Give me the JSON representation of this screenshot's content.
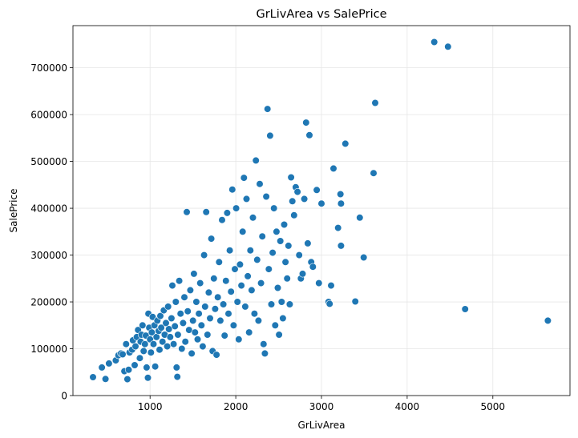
{
  "chart_data": {
    "type": "scatter",
    "title": "GrLivArea vs SalePrice",
    "xlabel": "GrLivArea",
    "ylabel": "SalePrice",
    "xlim": [
      100,
      5900
    ],
    "ylim": [
      0,
      790000
    ],
    "xticks": [
      1000,
      2000,
      3000,
      4000,
      5000
    ],
    "yticks": [
      0,
      100000,
      200000,
      300000,
      400000,
      500000,
      600000,
      700000
    ],
    "grid": true,
    "legend": "none",
    "colors": {
      "point": "#1f77b4",
      "point_edge": "#ffffff",
      "grid": "#e6e6e6",
      "axis": "#000000"
    },
    "points": [
      [
        334,
        39300
      ],
      [
        438,
        60000
      ],
      [
        480,
        35311
      ],
      [
        520,
        68500
      ],
      [
        600,
        75000
      ],
      [
        630,
        86000
      ],
      [
        660,
        90000
      ],
      [
        680,
        88000
      ],
      [
        700,
        52000
      ],
      [
        720,
        110000
      ],
      [
        735,
        34900
      ],
      [
        750,
        55000
      ],
      [
        760,
        92000
      ],
      [
        790,
        98000
      ],
      [
        800,
        118000
      ],
      [
        820,
        65000
      ],
      [
        830,
        105000
      ],
      [
        845,
        125000
      ],
      [
        860,
        140000
      ],
      [
        880,
        80000
      ],
      [
        890,
        115000
      ],
      [
        900,
        130000
      ],
      [
        912,
        150000
      ],
      [
        925,
        95000
      ],
      [
        940,
        110000
      ],
      [
        950,
        128000
      ],
      [
        960,
        60000
      ],
      [
        975,
        37900
      ],
      [
        980,
        175000
      ],
      [
        990,
        145000
      ],
      [
        1000,
        120000
      ],
      [
        1010,
        92000
      ],
      [
        1020,
        135000
      ],
      [
        1030,
        168000
      ],
      [
        1040,
        110000
      ],
      [
        1050,
        150000
      ],
      [
        1060,
        62000
      ],
      [
        1075,
        125000
      ],
      [
        1085,
        160000
      ],
      [
        1100,
        138000
      ],
      [
        1110,
        98000
      ],
      [
        1120,
        170000
      ],
      [
        1130,
        145000
      ],
      [
        1145,
        115000
      ],
      [
        1160,
        182000
      ],
      [
        1170,
        130000
      ],
      [
        1185,
        155000
      ],
      [
        1200,
        105000
      ],
      [
        1210,
        190000
      ],
      [
        1220,
        142000
      ],
      [
        1235,
        125000
      ],
      [
        1250,
        165000
      ],
      [
        1260,
        235000
      ],
      [
        1275,
        110000
      ],
      [
        1290,
        148000
      ],
      [
        1300,
        200000
      ],
      [
        1310,
        60000
      ],
      [
        1318,
        40000
      ],
      [
        1325,
        130000
      ],
      [
        1340,
        245000
      ],
      [
        1355,
        175000
      ],
      [
        1370,
        100000
      ],
      [
        1385,
        155000
      ],
      [
        1400,
        210000
      ],
      [
        1412,
        115000
      ],
      [
        1428,
        392000
      ],
      [
        1440,
        180000
      ],
      [
        1455,
        140000
      ],
      [
        1470,
        225000
      ],
      [
        1485,
        90000
      ],
      [
        1500,
        160000
      ],
      [
        1512,
        260000
      ],
      [
        1525,
        135000
      ],
      [
        1540,
        200000
      ],
      [
        1555,
        120000
      ],
      [
        1570,
        175000
      ],
      [
        1585,
        240000
      ],
      [
        1600,
        150000
      ],
      [
        1615,
        105000
      ],
      [
        1630,
        300000
      ],
      [
        1642,
        190000
      ],
      [
        1655,
        392000
      ],
      [
        1670,
        130000
      ],
      [
        1685,
        220000
      ],
      [
        1700,
        165000
      ],
      [
        1715,
        335000
      ],
      [
        1730,
        95000
      ],
      [
        1745,
        250000
      ],
      [
        1760,
        185000
      ],
      [
        1775,
        87000
      ],
      [
        1790,
        210000
      ],
      [
        1805,
        285000
      ],
      [
        1820,
        160000
      ],
      [
        1840,
        375000
      ],
      [
        1855,
        195000
      ],
      [
        1870,
        128000
      ],
      [
        1885,
        245000
      ],
      [
        1900,
        390000
      ],
      [
        1915,
        175000
      ],
      [
        1930,
        310000
      ],
      [
        1945,
        222000
      ],
      [
        1960,
        440000
      ],
      [
        1975,
        150000
      ],
      [
        1990,
        270000
      ],
      [
        2005,
        400000
      ],
      [
        2020,
        200000
      ],
      [
        2035,
        120000
      ],
      [
        2050,
        280000
      ],
      [
        2065,
        235000
      ],
      [
        2080,
        350000
      ],
      [
        2095,
        465000
      ],
      [
        2110,
        190000
      ],
      [
        2125,
        420000
      ],
      [
        2140,
        255000
      ],
      [
        2155,
        135000
      ],
      [
        2170,
        310000
      ],
      [
        2185,
        225000
      ],
      [
        2200,
        380000
      ],
      [
        2218,
        175000
      ],
      [
        2235,
        502000
      ],
      [
        2250,
        290000
      ],
      [
        2265,
        160000
      ],
      [
        2280,
        452000
      ],
      [
        2295,
        240000
      ],
      [
        2310,
        340000
      ],
      [
        2325,
        110000
      ],
      [
        2340,
        90000
      ],
      [
        2355,
        425000
      ],
      [
        2370,
        612000
      ],
      [
        2385,
        270000
      ],
      [
        2400,
        555000
      ],
      [
        2415,
        195000
      ],
      [
        2430,
        305000
      ],
      [
        2445,
        400000
      ],
      [
        2460,
        150000
      ],
      [
        2475,
        350000
      ],
      [
        2490,
        230000
      ],
      [
        2505,
        130000
      ],
      [
        2520,
        330000
      ],
      [
        2535,
        200000
      ],
      [
        2550,
        165000
      ],
      [
        2565,
        365000
      ],
      [
        2580,
        285000
      ],
      [
        2600,
        250000
      ],
      [
        2615,
        320000
      ],
      [
        2630,
        195000
      ],
      [
        2645,
        466000
      ],
      [
        2660,
        415000
      ],
      [
        2680,
        385000
      ],
      [
        2700,
        445000
      ],
      [
        2720,
        435000
      ],
      [
        2740,
        300000
      ],
      [
        2760,
        250000
      ],
      [
        2780,
        260000
      ],
      [
        2800,
        420000
      ],
      [
        2820,
        583000
      ],
      [
        2840,
        325000
      ],
      [
        2860,
        556000
      ],
      [
        2880,
        285000
      ],
      [
        2900,
        275000
      ],
      [
        2945,
        439000
      ],
      [
        2970,
        240000
      ],
      [
        3000,
        410000
      ],
      [
        3082,
        200000
      ],
      [
        3095,
        196000
      ],
      [
        3112,
        235000
      ],
      [
        3140,
        485000
      ],
      [
        3194,
        358000
      ],
      [
        3222,
        430000
      ],
      [
        3228,
        410000
      ],
      [
        3228,
        320000
      ],
      [
        3279,
        538000
      ],
      [
        3395,
        201000
      ],
      [
        3447,
        380000
      ],
      [
        3493,
        295000
      ],
      [
        3608,
        475000
      ],
      [
        3627,
        625000
      ],
      [
        4316,
        755000
      ],
      [
        4476,
        745000
      ],
      [
        4676,
        184750
      ],
      [
        5642,
        160000
      ]
    ]
  }
}
